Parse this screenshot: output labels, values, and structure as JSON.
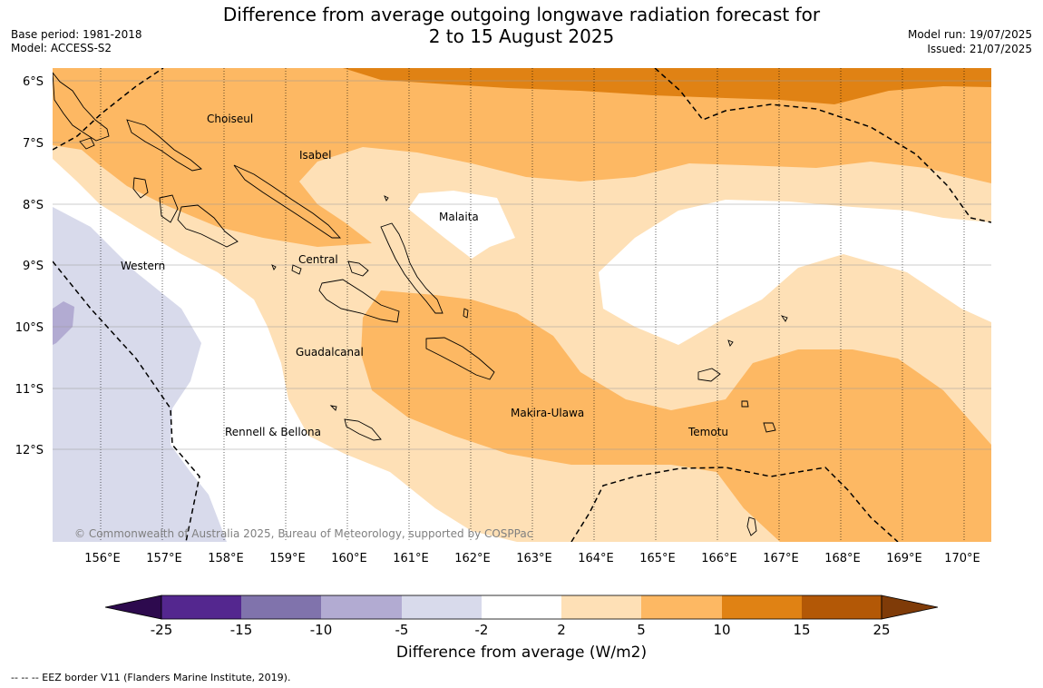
{
  "header": {
    "title_line1": "Difference from average outgoing longwave radiation forecast for",
    "title_line2": "2 to 15 August 2025",
    "base_period": "Base period: 1981-2018",
    "model": "Model: ACCESS-S2",
    "model_run": "Model run: 19/07/2025",
    "issued": "Issued: 21/07/2025"
  },
  "map": {
    "lat_ticks": [
      "6°S",
      "7°S",
      "8°S",
      "9°S",
      "10°S",
      "11°S",
      "12°S"
    ],
    "lon_ticks": [
      "156°E",
      "157°E",
      "158°E",
      "159°E",
      "160°E",
      "161°E",
      "162°E",
      "163°E",
      "164°E",
      "165°E",
      "166°E",
      "167°E",
      "168°E",
      "169°E",
      "170°E"
    ],
    "regions": {
      "choiseul": "Choiseul",
      "isabel": "Isabel",
      "malaita": "Malaita",
      "western": "Western",
      "central": "Central",
      "guadalcanal": "Guadalcanal",
      "makira_ulawa": "Makira-Ulawa",
      "temotu": "Temotu",
      "rennell_bellona": "Rennell & Bellona"
    },
    "copyright": "© Commonwealth of Australia 2025, Bureau of Meteorology, supported by COSPPac"
  },
  "colorbar": {
    "ticks": [
      "-25",
      "-15",
      "-10",
      "-5",
      "-2",
      "2",
      "5",
      "10",
      "15",
      "25"
    ],
    "colors": {
      "below_-25": "#2d0a4e",
      "-25_-15": "#54278f",
      "-15_-10": "#8073ac",
      "-10_-5": "#b2abd2",
      "-5_-2": "#d8daeb",
      "-2_2": "#ffffff",
      "2_5": "#fee0b6",
      "5_10": "#fdb863",
      "10_15": "#e08214",
      "15_25": "#b35806",
      "above_25": "#7f3b08"
    },
    "label": "Difference from average (W/m2)"
  },
  "footer": {
    "eez_note": "--  --  -- EEZ border V11 (Flanders Marine Institute, 2019)."
  }
}
